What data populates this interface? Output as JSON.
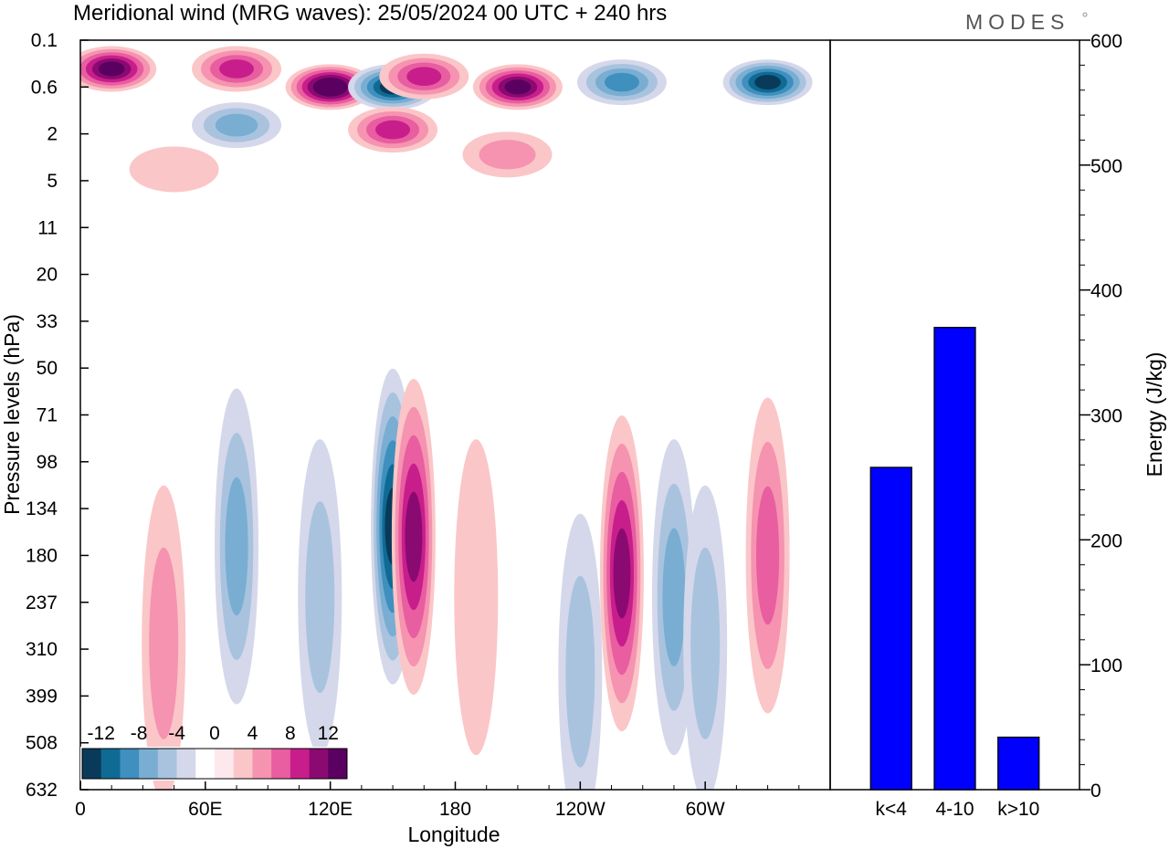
{
  "title": "Meridional wind (MRG waves):  25/05/2024  00 UTC  + 240 hrs",
  "logo": "MODES",
  "colors": {
    "bar": "#0000ff",
    "levels": [
      "#0a3a5a",
      "#0f6b93",
      "#3f8fbf",
      "#79aed2",
      "#a9c3df",
      "#d5d8ea",
      "#ffffff",
      "#fde8ee",
      "#fbc6c8",
      "#f593b0",
      "#e85ea0",
      "#c81e8c",
      "#8b0a72",
      "#5a0060"
    ]
  },
  "chart_data": [
    {
      "type": "heatmap",
      "xlabel": "Longitude",
      "ylabel": "Pressure levels (hPa)",
      "x_ticks": [
        "0",
        "60E",
        "120E",
        "180",
        "120W",
        "60W"
      ],
      "x_tick_values": [
        0,
        60,
        120,
        180,
        240,
        300
      ],
      "xlim": [
        0,
        360
      ],
      "y_ticks": [
        "0.1",
        "0.6",
        "2",
        "5",
        "11",
        "20",
        "33",
        "50",
        "71",
        "98",
        "134",
        "180",
        "237",
        "310",
        "399",
        "508",
        "632"
      ],
      "colorbar": {
        "labels": [
          "-12",
          "-8",
          "-4",
          "0",
          "4",
          "8",
          "12"
        ],
        "label_values": [
          -12,
          -8,
          -4,
          0,
          4,
          8,
          12
        ],
        "levels": [
          -14,
          -12,
          -10,
          -8,
          -6,
          -4,
          -2,
          0,
          2,
          4,
          6,
          8,
          10,
          12,
          14
        ]
      },
      "features": [
        {
          "lon": 15,
          "lev": 0.3,
          "v": 13
        },
        {
          "lon": 75,
          "lev": 0.3,
          "v": 9
        },
        {
          "lon": 120,
          "lev": 0.6,
          "v": 14
        },
        {
          "lon": 150,
          "lev": 0.6,
          "v": -12
        },
        {
          "lon": 165,
          "lev": 0.4,
          "v": 9
        },
        {
          "lon": 210,
          "lev": 0.6,
          "v": 13
        },
        {
          "lon": 260,
          "lev": 0.5,
          "v": -9
        },
        {
          "lon": 330,
          "lev": 0.5,
          "v": -13
        },
        {
          "lon": 150,
          "lev": 1.8,
          "v": 8
        },
        {
          "lon": 75,
          "lev": 1.6,
          "v": -6
        },
        {
          "lon": 205,
          "lev": 3,
          "v": 4
        },
        {
          "lon": 45,
          "lev": 4,
          "v": 3
        },
        {
          "lon": 150,
          "lev": 150,
          "v": -13
        },
        {
          "lon": 160,
          "lev": 160,
          "v": 10
        },
        {
          "lon": 260,
          "lev": 200,
          "v": 11
        },
        {
          "lon": 285,
          "lev": 230,
          "v": -6
        },
        {
          "lon": 330,
          "lev": 180,
          "v": 7
        },
        {
          "lon": 75,
          "lev": 170,
          "v": -7
        },
        {
          "lon": 40,
          "lev": 300,
          "v": 4
        },
        {
          "lon": 115,
          "lev": 230,
          "v": -5
        },
        {
          "lon": 190,
          "lev": 230,
          "v": 3
        },
        {
          "lon": 240,
          "lev": 350,
          "v": -4
        },
        {
          "lon": 300,
          "lev": 300,
          "v": -5
        }
      ]
    },
    {
      "type": "bar",
      "categories": [
        "k<4",
        "4-10",
        "k>10"
      ],
      "values": [
        258,
        370,
        42
      ],
      "ylabel": "Energy (J/kg)",
      "ylim": [
        0,
        600
      ],
      "y_ticks": [
        0,
        100,
        200,
        300,
        400,
        500,
        600
      ]
    }
  ]
}
